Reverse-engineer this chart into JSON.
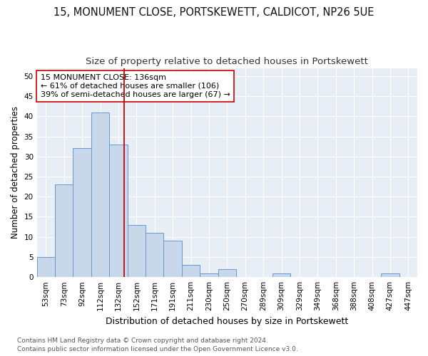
{
  "title1": "15, MONUMENT CLOSE, PORTSKEWETT, CALDICOT, NP26 5UE",
  "title2": "Size of property relative to detached houses in Portskewett",
  "xlabel": "Distribution of detached houses by size in Portskewett",
  "ylabel": "Number of detached properties",
  "bin_labels": [
    "53sqm",
    "73sqm",
    "92sqm",
    "112sqm",
    "132sqm",
    "152sqm",
    "171sqm",
    "191sqm",
    "211sqm",
    "230sqm",
    "250sqm",
    "270sqm",
    "289sqm",
    "309sqm",
    "329sqm",
    "349sqm",
    "368sqm",
    "388sqm",
    "408sqm",
    "427sqm",
    "447sqm"
  ],
  "bar_values": [
    5,
    23,
    32,
    41,
    33,
    13,
    11,
    9,
    3,
    1,
    2,
    0,
    0,
    1,
    0,
    0,
    0,
    0,
    0,
    1,
    0
  ],
  "bar_color": "#c8d8ea",
  "bar_edgecolor": "#6699cc",
  "bar_linewidth": 0.7,
  "vline_x_index": 4.3,
  "vline_color": "#cc0000",
  "vline_linewidth": 1.3,
  "annotation_line1": "15 MONUMENT CLOSE: 136sqm",
  "annotation_line2": "← 61% of detached houses are smaller (106)",
  "annotation_line3": "39% of semi-detached houses are larger (67) →",
  "annotation_box_edgecolor": "#cc0000",
  "annotation_box_facecolor": "#ffffff",
  "ylim_max": 52,
  "yticks": [
    0,
    5,
    10,
    15,
    20,
    25,
    30,
    35,
    40,
    45,
    50
  ],
  "footer1": "Contains HM Land Registry data © Crown copyright and database right 2024.",
  "footer2": "Contains public sector information licensed under the Open Government Licence v3.0.",
  "fig_background": "#ffffff",
  "plot_background": "#e8eef5",
  "grid_color": "#ffffff",
  "title1_fontsize": 10.5,
  "title2_fontsize": 9.5,
  "xlabel_fontsize": 9,
  "ylabel_fontsize": 8.5,
  "tick_fontsize": 7.5,
  "annotation_fontsize": 8,
  "footer_fontsize": 6.5
}
